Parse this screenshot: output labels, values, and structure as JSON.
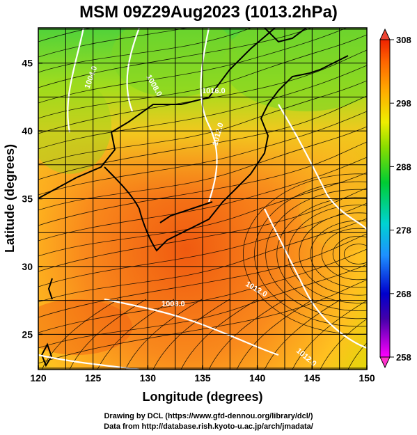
{
  "title": "MSM 09Z29Aug2023 (1013.2hPa)",
  "x_axis": {
    "label": "Longitude (degrees)",
    "ticks": [
      "120",
      "125",
      "130",
      "135",
      "140",
      "145",
      "150"
    ],
    "range": [
      120,
      150
    ]
  },
  "y_axis": {
    "label": "Latitude  (degrees)",
    "ticks": [
      "25",
      "30",
      "35",
      "40",
      "45"
    ],
    "range": [
      22.4,
      47.6
    ]
  },
  "colorbar": {
    "ticks": [
      "258",
      "268",
      "278",
      "288",
      "298",
      "308"
    ],
    "range": [
      258,
      308
    ],
    "colors": [
      "#ff00ff",
      "#0000cc",
      "#1e90ff",
      "#00d2d2",
      "#00cc33",
      "#88dd00",
      "#eeee00",
      "#ffaa00",
      "#ff6600",
      "#ee2200"
    ]
  },
  "contour_labels": [
    "1004.0",
    "1008.0",
    "1016.0",
    "1012.0",
    "1012.0",
    "1008.0",
    "1012.0"
  ],
  "credits": {
    "line1": "Drawing by DCL (https://www.gfd-dennou.org/library/dcl/)",
    "line2": "Data from http://database.rish.kyoto-u.ac.jp/arch/jmadata/"
  }
}
